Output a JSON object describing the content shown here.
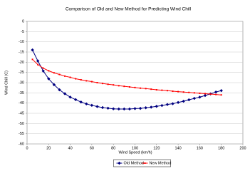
{
  "chart_data": {
    "type": "line",
    "title": "Comparison of Old and New Method for Predicting Wind Chill",
    "x_label": "Wind Speed (km/h)",
    "y_label": "Wind Chill (C)",
    "x": [
      5,
      10,
      15,
      20,
      25,
      30,
      35,
      40,
      45,
      50,
      55,
      60,
      65,
      70,
      75,
      80,
      85,
      90,
      95,
      100,
      105,
      110,
      115,
      120,
      125,
      130,
      135,
      140,
      145,
      150,
      155,
      160,
      165,
      170,
      175,
      180
    ],
    "series": [
      {
        "name": "Old Method",
        "color": "#000080",
        "marker": "diamond",
        "values": [
          -14,
          -19.4,
          -24.3,
          -28.1,
          -31.0,
          -33.5,
          -35.4,
          -37.1,
          -38.3,
          -39.5,
          -40.4,
          -41.1,
          -41.7,
          -42.2,
          -42.5,
          -42.8,
          -42.9,
          -42.9,
          -42.9,
          -42.7,
          -42.6,
          -42.3,
          -42.0,
          -41.6,
          -41.2,
          -40.7,
          -40.3,
          -39.7,
          -39.1,
          -38.4,
          -37.7,
          -37.1,
          -36.3,
          -35.5,
          -34.6,
          -33.9
        ]
      },
      {
        "name": "New Method",
        "color": "#ff0000",
        "marker": "square",
        "values": [
          -18.6,
          -21.2,
          -22.9,
          -24.2,
          -25.2,
          -26.0,
          -26.8,
          -27.4,
          -28.1,
          -28.6,
          -29.1,
          -29.5,
          -30.0,
          -30.4,
          -30.8,
          -31.1,
          -31.5,
          -31.8,
          -32.1,
          -32.4,
          -32.7,
          -32.9,
          -33.2,
          -33.5,
          -33.7,
          -33.9,
          -34.2,
          -34.4,
          -34.6,
          -34.8,
          -35.0,
          -35.2,
          -35.4,
          -35.6,
          -35.8,
          -36.0
        ]
      }
    ],
    "xlim": [
      0,
      200
    ],
    "xticks": [
      0,
      20,
      40,
      60,
      80,
      100,
      120,
      140,
      160,
      180,
      200
    ],
    "ylim": [
      -60,
      0
    ],
    "yticks": [
      0,
      -5,
      -10,
      -15,
      -20,
      -25,
      -30,
      -35,
      -40,
      -45,
      -50,
      -55,
      -60
    ],
    "grid": true,
    "legend": "bottom"
  }
}
